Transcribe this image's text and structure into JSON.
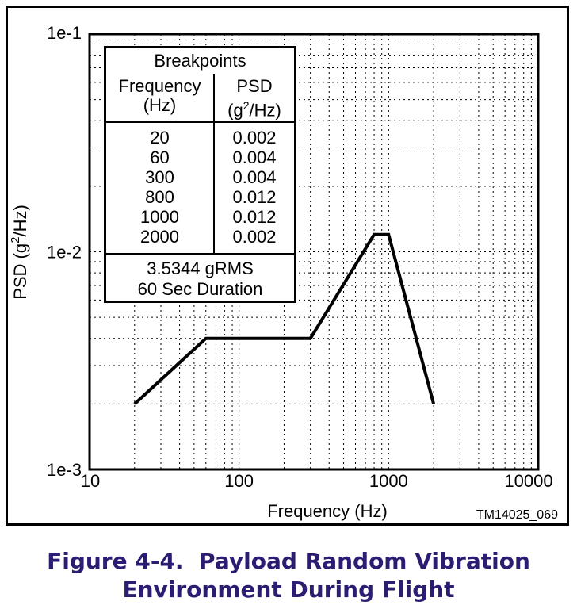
{
  "chart_data": {
    "type": "line",
    "xscale": "log",
    "yscale": "log",
    "xlim": [
      10,
      10000
    ],
    "ylim": [
      0.001,
      0.1
    ],
    "xlabel": "Frequency (Hz)",
    "ylabel": "PSD (g2/Hz)",
    "xticks": [
      "10",
      "100",
      "1000",
      "10000"
    ],
    "yticks": [
      "1e-3",
      "1e-2",
      "1e-1"
    ],
    "x": [
      20,
      60,
      300,
      800,
      1000,
      2000
    ],
    "y": [
      0.002,
      0.004,
      0.004,
      0.012,
      0.012,
      0.002
    ],
    "grid": true
  },
  "table": {
    "title": "Breakpoints",
    "col1_header": [
      "Frequency",
      "(Hz)"
    ],
    "col2_header": [
      "PSD",
      "(g2/Hz)"
    ],
    "frequencies": [
      "20",
      "60",
      "300",
      "800",
      "1000",
      "2000"
    ],
    "psd_values": [
      "0.002",
      "0.004",
      "0.004",
      "0.012",
      "0.012",
      "0.002"
    ],
    "footer": [
      "3.5344 gRMS",
      "60 Sec Duration"
    ]
  },
  "figure_id": "TM14025_069",
  "caption": [
    "Figure 4-4.  Payload Random Vibration",
    "Environment During Flight"
  ]
}
